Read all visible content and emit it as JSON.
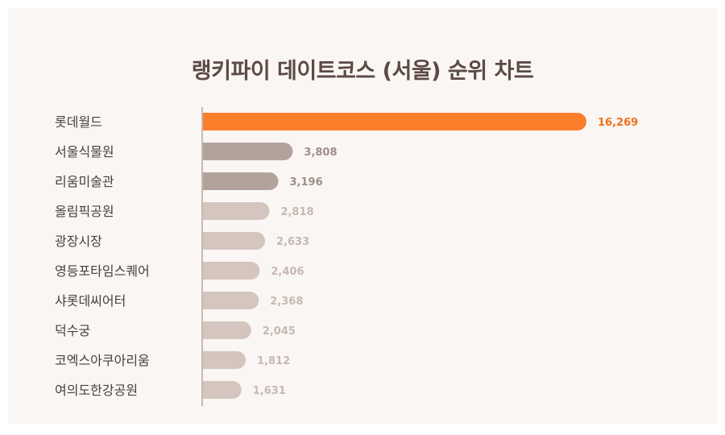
{
  "chart_data": {
    "type": "bar",
    "orientation": "horizontal",
    "title": "랭키파이 데이트코스 (서울) 순위 차트",
    "categories": [
      "롯데월드",
      "서울식물원",
      "리움미술관",
      "올림픽공원",
      "광장시장",
      "영등포타임스퀘어",
      "샤롯데씨어터",
      "덕수궁",
      "코엑스아쿠아리움",
      "여의도한강공원"
    ],
    "values": [
      16269,
      3808,
      3196,
      2818,
      2633,
      2406,
      2368,
      2045,
      1812,
      1631
    ],
    "value_labels": [
      "16,269",
      "3,808",
      "3,196",
      "2,818",
      "2,633",
      "2,406",
      "2,368",
      "2,045",
      "1,812",
      "1,631"
    ],
    "xlim": [
      0,
      16269
    ],
    "grid": false,
    "legend": "none",
    "colors": {
      "top": "#fd7e2a",
      "dark": "#b3a29c",
      "light": "#d4c5bf",
      "top_label": "#f0701f",
      "dark_label": "#9e8e88",
      "light_label": "#c6b8b2",
      "axis": "#c9b9b2"
    }
  }
}
